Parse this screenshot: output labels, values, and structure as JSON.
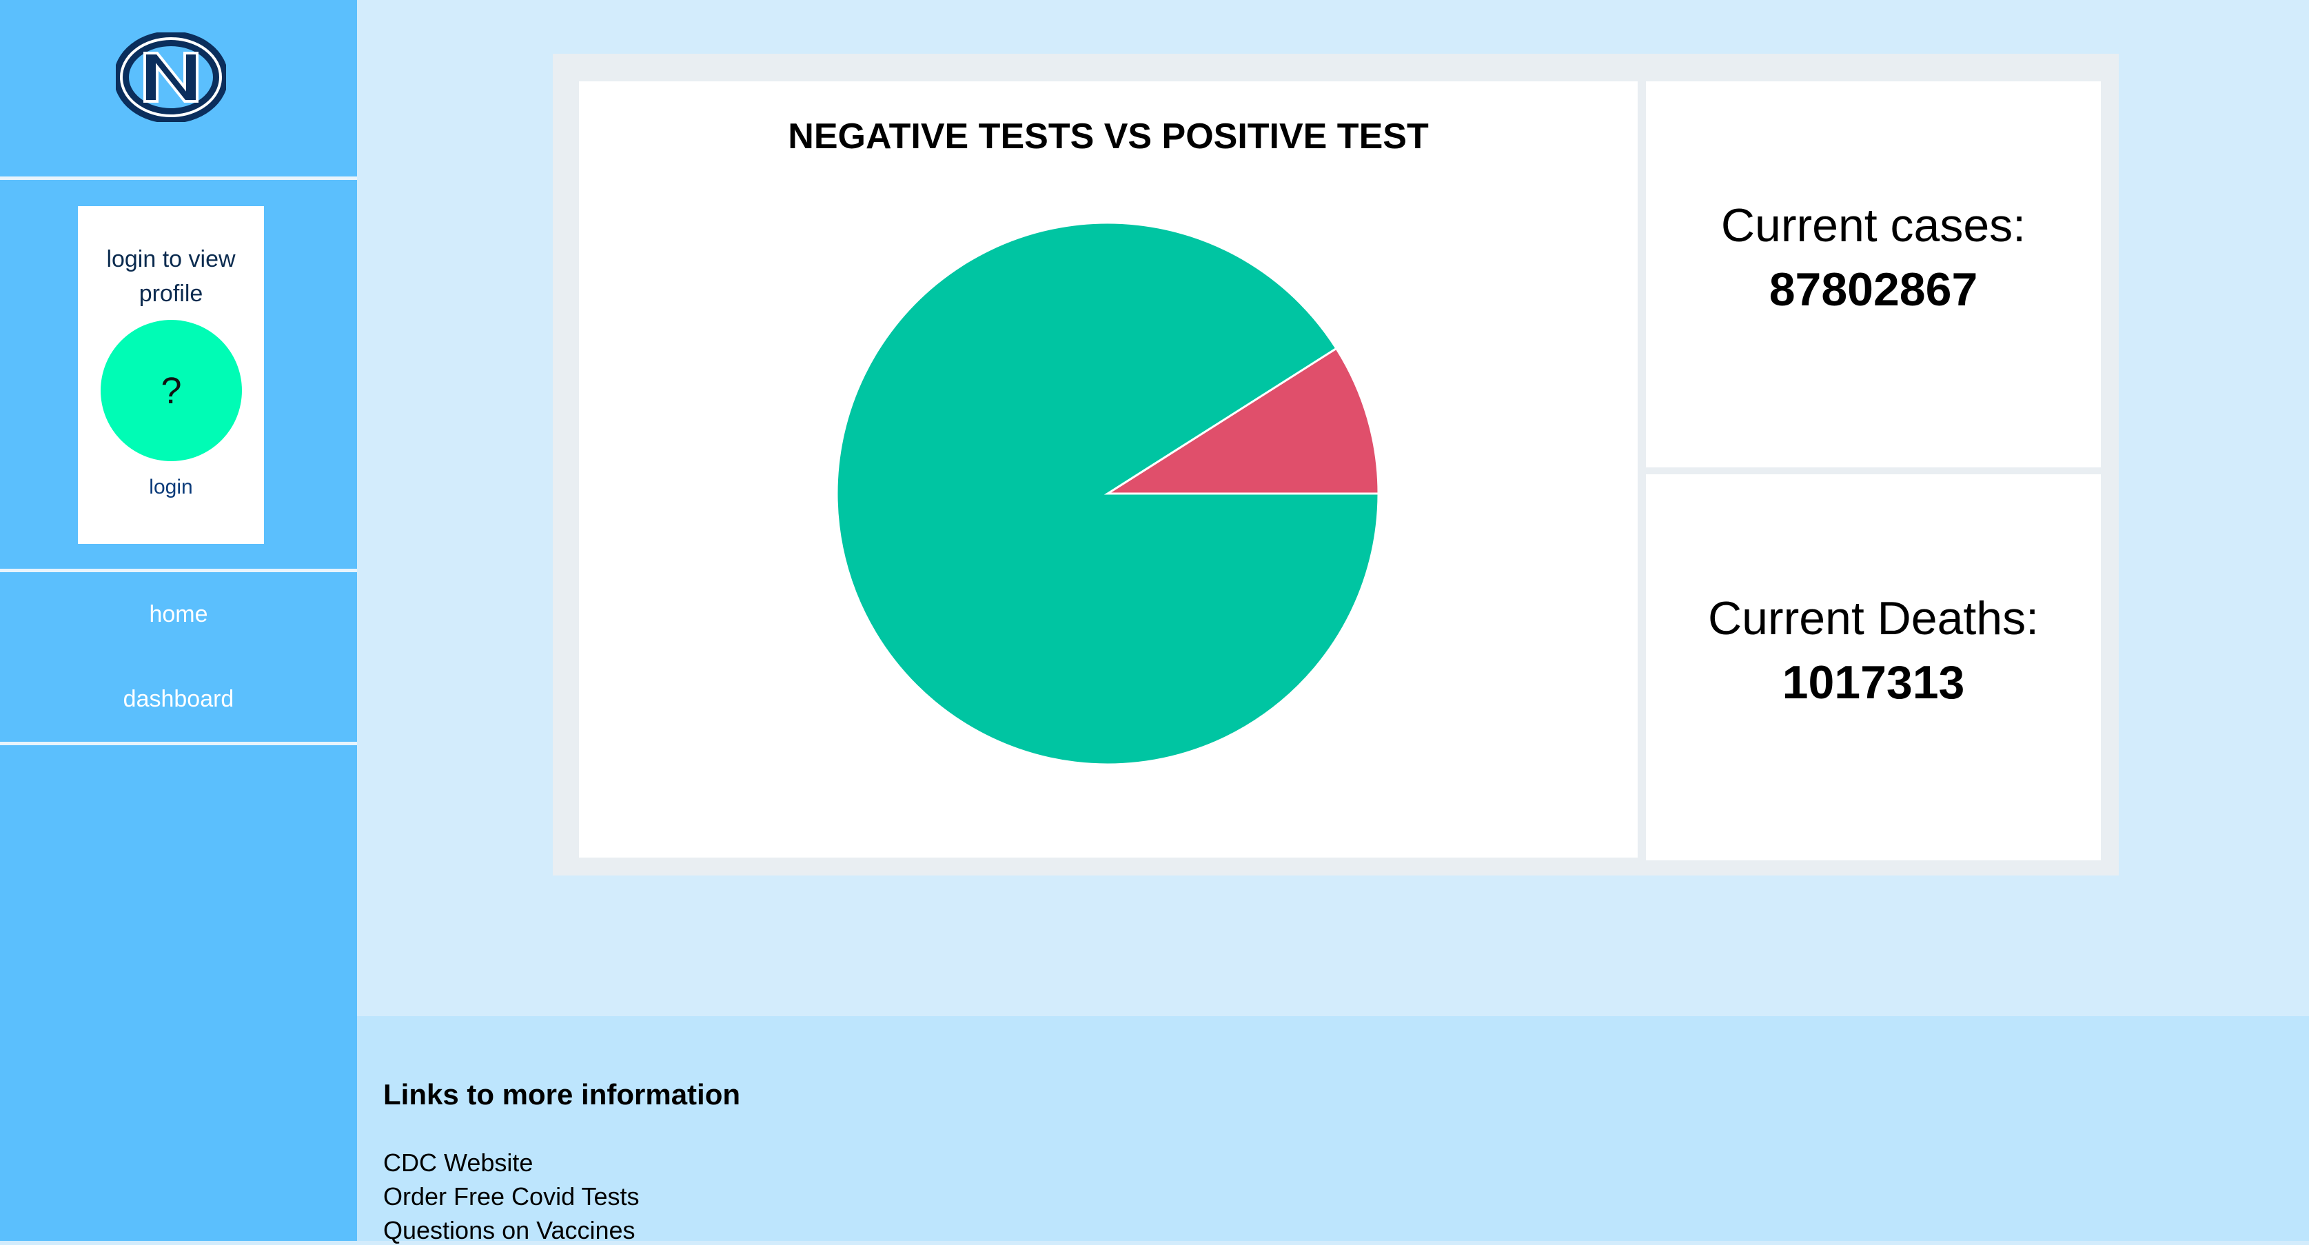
{
  "sidebar": {
    "logo_text": "NC",
    "profile": {
      "prompt": "login to view profile",
      "avatar_placeholder": "?",
      "login_label": "login"
    },
    "nav": [
      {
        "label": "home"
      },
      {
        "label": "dashboard"
      }
    ]
  },
  "main": {
    "stats": {
      "cases_label": "Current cases:",
      "cases_value": "87802867",
      "deaths_label": "Current Deaths:",
      "deaths_value": "1017313"
    }
  },
  "chart_data": {
    "type": "pie",
    "title": "NEGATIVE TESTS VS POSITIVE TEST",
    "slices": [
      {
        "value": 91,
        "color": "#00c5a2"
      },
      {
        "value": 9,
        "color": "#e04f6b"
      }
    ]
  },
  "footer": {
    "heading": "Links to more information",
    "links": [
      {
        "label": "CDC Website"
      },
      {
        "label": "Order Free Covid Tests"
      },
      {
        "label": "Questions on Vaccines"
      }
    ]
  }
}
